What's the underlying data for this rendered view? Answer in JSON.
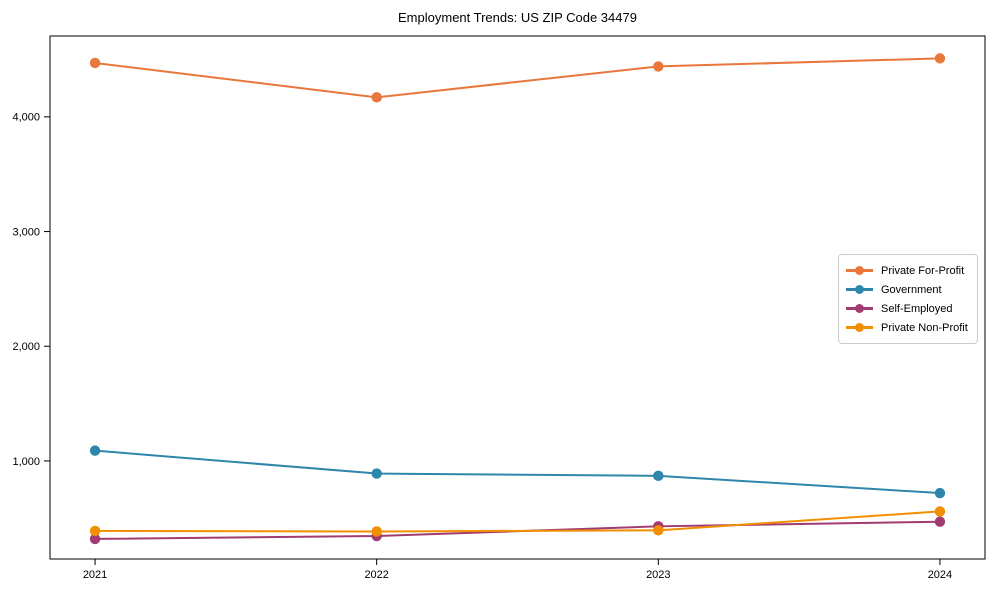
{
  "figure": {
    "title": "Employment Trends: US ZIP Code 34479"
  },
  "chart_data": {
    "type": "line",
    "title": "Employment Trends: US ZIP Code 34479",
    "xlabel": "",
    "ylabel": "",
    "x": [
      2021,
      2022,
      2023,
      2024
    ],
    "x_tick_labels": [
      "2021",
      "2022",
      "2023",
      "2024"
    ],
    "y_tick_values": [
      1000,
      2000,
      3000,
      4000
    ],
    "y_tick_labels": [
      "1,000",
      "2,000",
      "3,000",
      "4,000"
    ],
    "xlim": [
      2020.84,
      2024.16
    ],
    "ylim": [
      145,
      4705
    ],
    "grid": false,
    "legend_position": "center-right",
    "marker": "circle",
    "series": [
      {
        "name": "Private For-Profit",
        "color": "#E8773C",
        "values": [
          4470,
          4170,
          4440,
          4510
        ]
      },
      {
        "name": "Government",
        "color": "#2E86AB",
        "values": [
          1090,
          890,
          870,
          720
        ]
      },
      {
        "name": "Self-Employed",
        "color": "#A23B72",
        "values": [
          320,
          345,
          430,
          470
        ]
      },
      {
        "name": "Private Non-Profit",
        "color": "#F18F01",
        "values": [
          390,
          385,
          395,
          560
        ]
      }
    ]
  }
}
